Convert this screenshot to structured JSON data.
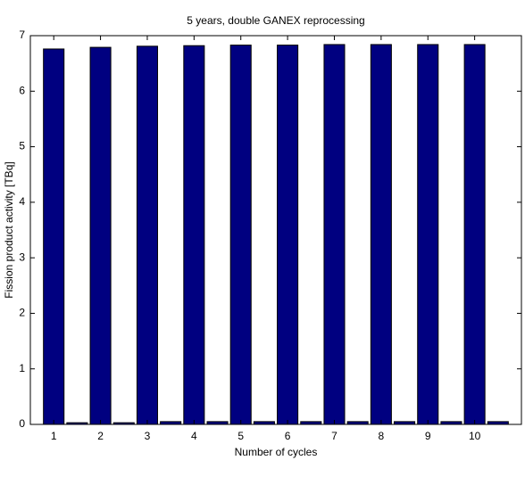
{
  "chart_data": {
    "type": "bar",
    "title": "5 years, double GANEX reprocessing",
    "xlabel": "Number of cycles",
    "ylabel": "Fission product activity [TBq]",
    "x": [
      1,
      1.5,
      2,
      2.5,
      3,
      3.5,
      4,
      4.5,
      5,
      5.5,
      6,
      6.5,
      7,
      7.5,
      8,
      8.5,
      9,
      9.5,
      10,
      10.5
    ],
    "values": [
      6.76,
      0.03,
      6.79,
      0.03,
      6.81,
      0.05,
      6.82,
      0.05,
      6.83,
      0.05,
      6.83,
      0.05,
      6.84,
      0.05,
      6.84,
      0.05,
      6.84,
      0.05,
      6.84,
      0.05
    ],
    "color": "#000080",
    "xlim": [
      0.5,
      11
    ],
    "xticks": [
      1,
      2,
      3,
      4,
      5,
      6,
      7,
      8,
      9,
      10
    ],
    "ylim": [
      0,
      7
    ],
    "yticks": [
      0,
      1,
      2,
      3,
      4,
      5,
      6,
      7
    ]
  }
}
